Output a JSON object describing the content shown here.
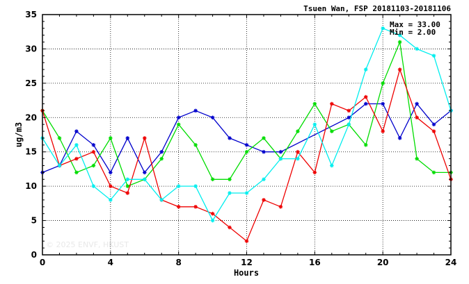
{
  "chart_data": {
    "type": "line",
    "title": "Tsuen Wan, FSP 20181103-20181106",
    "xlabel": "Hours",
    "ylabel": "ug/m3",
    "xlim": [
      0,
      24
    ],
    "ylim": [
      0,
      35
    ],
    "xticks": [
      0,
      4,
      8,
      12,
      16,
      20,
      24
    ],
    "yticks": [
      0,
      5,
      10,
      15,
      20,
      25,
      30,
      35
    ],
    "grid": true,
    "annotations": {
      "max": "Max = 33.00",
      "min": "Min =  2.00"
    },
    "watermark": "© 2025 ENVF, HKUST",
    "x": [
      0,
      1,
      2,
      3,
      4,
      5,
      6,
      7,
      8,
      9,
      10,
      11,
      12,
      13,
      14,
      15,
      16,
      17,
      18,
      19,
      20,
      21,
      22,
      23,
      24
    ],
    "series": [
      {
        "color": "#0000cc",
        "values": [
          12,
          13,
          18,
          16,
          12,
          17,
          12,
          15,
          20,
          21,
          20,
          17,
          16,
          15,
          15,
          null,
          null,
          null,
          20,
          22,
          22,
          17,
          22,
          19,
          21
        ]
      },
      {
        "color": "#00dd00",
        "values": [
          21,
          17,
          12,
          13,
          17,
          10,
          11,
          14,
          19,
          16,
          11,
          11,
          15,
          17,
          14,
          18,
          22,
          18,
          19,
          16,
          25,
          31,
          14,
          12,
          12
        ]
      },
      {
        "color": "#ee0000",
        "values": [
          21,
          13,
          14,
          15,
          10,
          9,
          17,
          8,
          7,
          7,
          6,
          4,
          2,
          8,
          7,
          15,
          12,
          22,
          21,
          23,
          18,
          27,
          20,
          18,
          11
        ]
      },
      {
        "color": "#00eeee",
        "values": [
          17,
          13,
          16,
          10,
          8,
          11,
          11,
          8,
          10,
          10,
          5,
          9,
          9,
          11,
          14,
          14,
          19,
          13,
          19,
          27,
          33,
          32,
          30,
          29,
          21
        ]
      }
    ]
  }
}
